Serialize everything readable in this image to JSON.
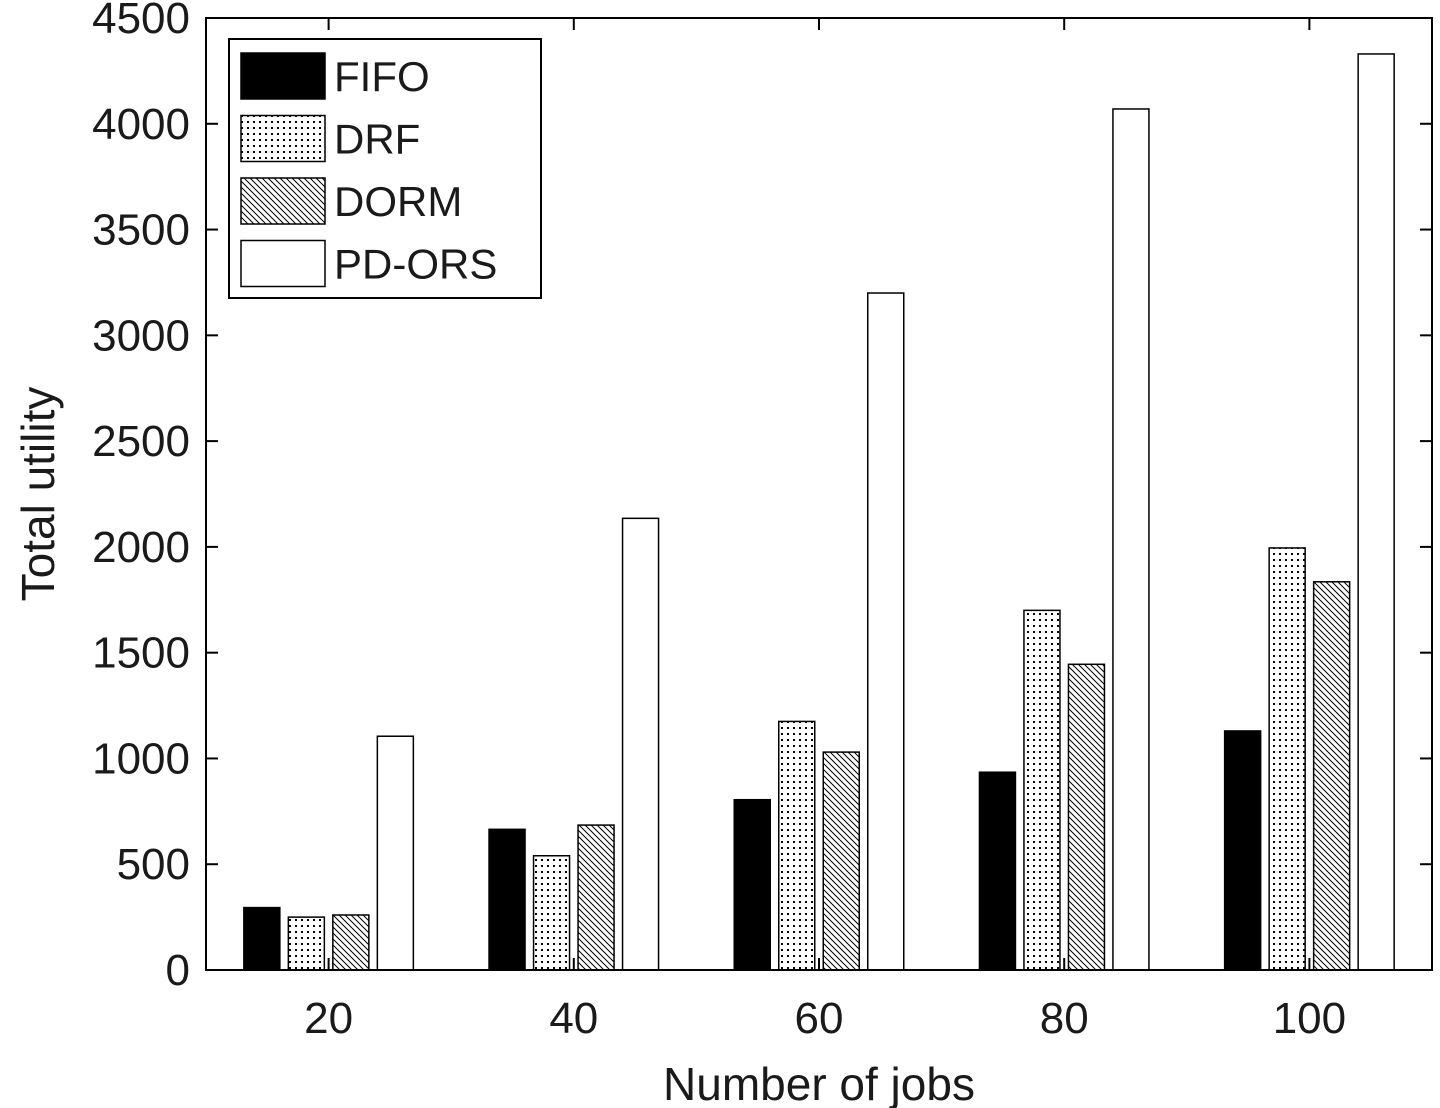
{
  "chart_data": {
    "type": "bar",
    "title": "",
    "xlabel": "Number of jobs",
    "ylabel": "Total utility",
    "categories": [
      "20",
      "40",
      "60",
      "80",
      "100"
    ],
    "ylim": [
      0,
      4500
    ],
    "yticks": [
      0,
      500,
      1000,
      1500,
      2000,
      2500,
      3000,
      3500,
      4000,
      4500
    ],
    "grid": false,
    "legend_position": "top-left",
    "series": [
      {
        "name": "FIFO",
        "pattern": "solid",
        "values": [
          295,
          665,
          805,
          935,
          1130
        ]
      },
      {
        "name": "DRF",
        "pattern": "dotted",
        "values": [
          250,
          540,
          1175,
          1700,
          1995
        ]
      },
      {
        "name": "DORM",
        "pattern": "hatch",
        "values": [
          260,
          685,
          1030,
          1445,
          1835
        ]
      },
      {
        "name": "PD-ORS",
        "pattern": "empty",
        "values": [
          1105,
          2135,
          3200,
          4070,
          4330
        ]
      }
    ]
  }
}
